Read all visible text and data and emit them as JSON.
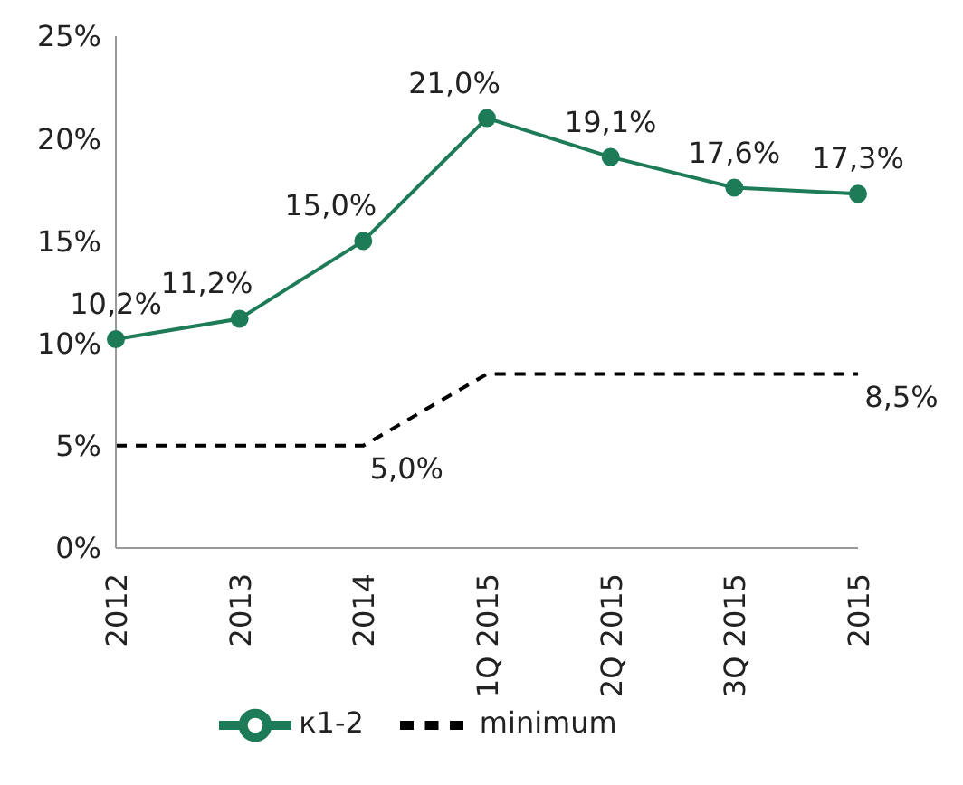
{
  "chart_data": {
    "type": "line",
    "categories": [
      "2012",
      "2013",
      "2014",
      "1Q 2015",
      "2Q 2015",
      "3Q 2015",
      "2015"
    ],
    "series": [
      {
        "name": "к1-2",
        "color": "#1e7b57",
        "marker": "circle",
        "line_style": "solid",
        "values": [
          10.2,
          11.2,
          15.0,
          21.0,
          19.1,
          17.6,
          17.3
        ],
        "value_labels": [
          "10,2%",
          "11,2%",
          "15,0%",
          "21,0%",
          "19,1%",
          "17,6%",
          "17,3%"
        ]
      },
      {
        "name": "minimum",
        "color": "#000000",
        "marker": "none",
        "line_style": "dashed",
        "values": [
          5,
          5,
          5,
          8.5,
          8.5,
          8.5,
          8.5
        ],
        "value_labels": [
          null,
          null,
          "5,0%",
          null,
          null,
          null,
          "8,5%"
        ]
      }
    ],
    "ylim": [
      0,
      25
    ],
    "yticks": [
      {
        "value": 0,
        "label": "0%"
      },
      {
        "value": 5,
        "label": "5%"
      },
      {
        "value": 10,
        "label": "10%"
      },
      {
        "value": 15,
        "label": "15%"
      },
      {
        "value": 20,
        "label": "20%"
      },
      {
        "value": 25,
        "label": "25%"
      }
    ],
    "grid": false,
    "legend": "bottom"
  }
}
